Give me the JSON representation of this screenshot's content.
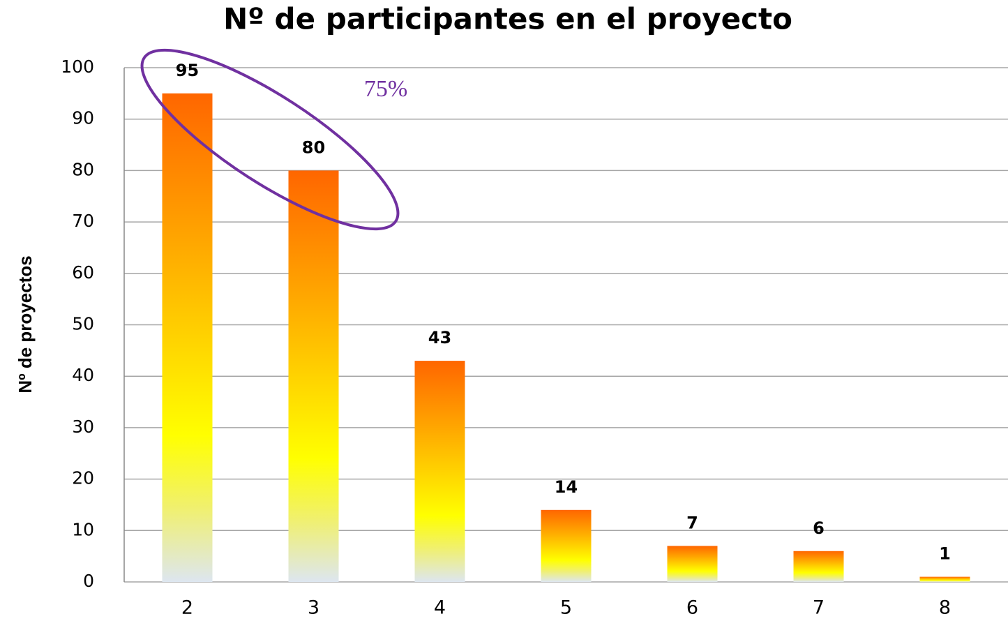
{
  "chart_data": {
    "type": "bar",
    "title": "Nº de participantes en el proyecto",
    "y_label": "Nº de proyectos",
    "categories": [
      "2",
      "3",
      "4",
      "5",
      "6",
      "7",
      "8"
    ],
    "values": [
      95,
      80,
      43,
      14,
      7,
      6,
      1
    ],
    "gradient_colors": [
      "#ff6600",
      "#ffa600",
      "#ffff00",
      "#f0f070",
      "#dde6f0"
    ],
    "ylim": [
      0,
      100
    ],
    "yticks": [
      0,
      10,
      20,
      30,
      40,
      50,
      60,
      70,
      80,
      90,
      100
    ],
    "grid": true,
    "annotation": "75%",
    "annotation_color": "#7030a0"
  }
}
